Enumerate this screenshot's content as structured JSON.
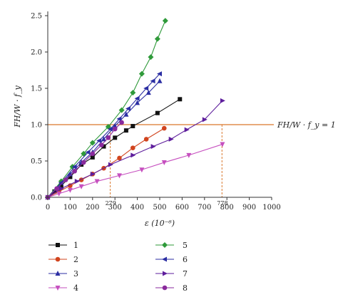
{
  "chart_data": {
    "type": "line",
    "xlabel": "ε (10⁻⁶)",
    "ylabel": "FH/W · f_y",
    "xlim": [
      0,
      1000
    ],
    "ylim": [
      0,
      2.5
    ],
    "x_ticks": [
      0,
      100,
      200,
      300,
      400,
      500,
      600,
      700,
      800,
      900,
      1000
    ],
    "y_ticks": [
      0.0,
      0.5,
      1.0,
      1.5,
      2.0,
      2.5
    ],
    "x_tick_labels": [
      "0",
      "100",
      "200",
      "300",
      "400",
      "500",
      "600",
      "700",
      "800",
      "900",
      "1000"
    ],
    "y_tick_labels": [
      "0.0",
      "0.5",
      "1.0",
      "1.5",
      "2.0",
      "2.5"
    ],
    "grid": false,
    "legend_position": "bottom",
    "reference_line": {
      "y": 1.0,
      "label": "FH/W · f_y = 1",
      "color": "#d9772b"
    },
    "annotations": [
      {
        "x": 279,
        "label": "279",
        "color": "#d9772b"
      },
      {
        "x": 778,
        "label": "778",
        "color": "#d9772b"
      }
    ],
    "series": [
      {
        "name": "1",
        "marker": "square",
        "color": "#111111",
        "x": [
          0,
          30,
          60,
          100,
          150,
          200,
          250,
          300,
          350,
          380,
          490,
          590
        ],
        "y": [
          0,
          0.08,
          0.16,
          0.28,
          0.45,
          0.55,
          0.7,
          0.82,
          0.92,
          0.98,
          1.16,
          1.35
        ]
      },
      {
        "name": "2",
        "marker": "circle",
        "color": "#d1441e",
        "x": [
          0,
          50,
          100,
          150,
          200,
          250,
          320,
          380,
          440,
          520
        ],
        "y": [
          0,
          0.08,
          0.16,
          0.24,
          0.32,
          0.4,
          0.54,
          0.68,
          0.8,
          0.95
        ]
      },
      {
        "name": "3",
        "marker": "triangle-up",
        "color": "#2b2ea3",
        "x": [
          0,
          50,
          100,
          150,
          200,
          250,
          300,
          350,
          400,
          450,
          500
        ],
        "y": [
          0,
          0.15,
          0.32,
          0.48,
          0.62,
          0.8,
          0.98,
          1.14,
          1.3,
          1.44,
          1.6
        ]
      },
      {
        "name": "4",
        "marker": "triangle-down",
        "color": "#c64fbf",
        "x": [
          0,
          50,
          100,
          150,
          220,
          320,
          420,
          520,
          630,
          780
        ],
        "y": [
          0,
          0.05,
          0.1,
          0.15,
          0.22,
          0.3,
          0.38,
          0.48,
          0.58,
          0.73
        ]
      },
      {
        "name": "5",
        "marker": "diamond",
        "color": "#2f9a3a",
        "x": [
          0,
          60,
          110,
          160,
          200,
          270,
          330,
          380,
          420,
          460,
          490,
          525
        ],
        "y": [
          0,
          0.22,
          0.42,
          0.6,
          0.75,
          0.97,
          1.2,
          1.44,
          1.7,
          1.93,
          2.18,
          2.43
        ]
      },
      {
        "name": "6",
        "marker": "triangle-left",
        "color": "#2b2ea3",
        "x": [
          0,
          60,
          120,
          180,
          230,
          280,
          320,
          360,
          400,
          440,
          470,
          500
        ],
        "y": [
          0,
          0.2,
          0.42,
          0.62,
          0.78,
          0.94,
          1.08,
          1.22,
          1.36,
          1.5,
          1.6,
          1.7
        ]
      },
      {
        "name": "7",
        "marker": "triangle-right",
        "color": "#5e1e9c",
        "x": [
          0,
          60,
          130,
          200,
          280,
          380,
          470,
          550,
          620,
          700,
          780
        ],
        "y": [
          0,
          0.12,
          0.22,
          0.32,
          0.45,
          0.58,
          0.7,
          0.8,
          0.93,
          1.07,
          1.33
        ]
      },
      {
        "name": "8",
        "marker": "circle",
        "color": "#8a2a9c",
        "x": [
          0,
          40,
          80,
          120,
          160,
          200,
          240,
          270,
          300,
          330
        ],
        "y": [
          0,
          0.12,
          0.24,
          0.36,
          0.48,
          0.6,
          0.72,
          0.82,
          0.94,
          1.03
        ]
      }
    ]
  }
}
